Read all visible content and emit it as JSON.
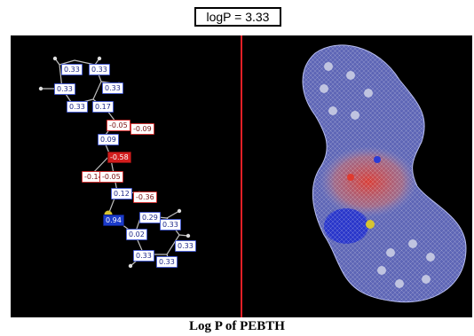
{
  "header": {
    "logp_label": "logP = 3.33"
  },
  "caption": "Log P of PEBTH",
  "charges": [
    {
      "value": "0.33",
      "kind": "pos"
    },
    {
      "value": "0.33",
      "kind": "pos"
    },
    {
      "value": "0.33",
      "kind": "pos"
    },
    {
      "value": "0.33",
      "kind": "pos"
    },
    {
      "value": "0.33",
      "kind": "pos"
    },
    {
      "value": "0.17",
      "kind": "pos"
    },
    {
      "value": "-0.05",
      "kind": "neg"
    },
    {
      "value": "-0.09",
      "kind": "neg"
    },
    {
      "value": "0.09",
      "kind": "pos"
    },
    {
      "value": "-0.58",
      "kind": "strongneg"
    },
    {
      "value": "-0.14",
      "kind": "neg"
    },
    {
      "value": "-0.05",
      "kind": "neg"
    },
    {
      "value": "0.12",
      "kind": "pos"
    },
    {
      "value": "-0.36",
      "kind": "neg"
    },
    {
      "value": "0.94",
      "kind": "strongpos"
    },
    {
      "value": "0.29",
      "kind": "pos"
    },
    {
      "value": "0.33",
      "kind": "pos"
    },
    {
      "value": "0.02",
      "kind": "pos"
    },
    {
      "value": "0.33",
      "kind": "pos"
    },
    {
      "value": "0.33",
      "kind": "pos"
    },
    {
      "value": "0.33",
      "kind": "pos"
    }
  ],
  "colors": {
    "panel": "#000000",
    "divider": "#e21f26",
    "mesh_positive": "#6f78d6",
    "mesh_negative": "#e03a2e",
    "sulfur": "#d6c431"
  }
}
